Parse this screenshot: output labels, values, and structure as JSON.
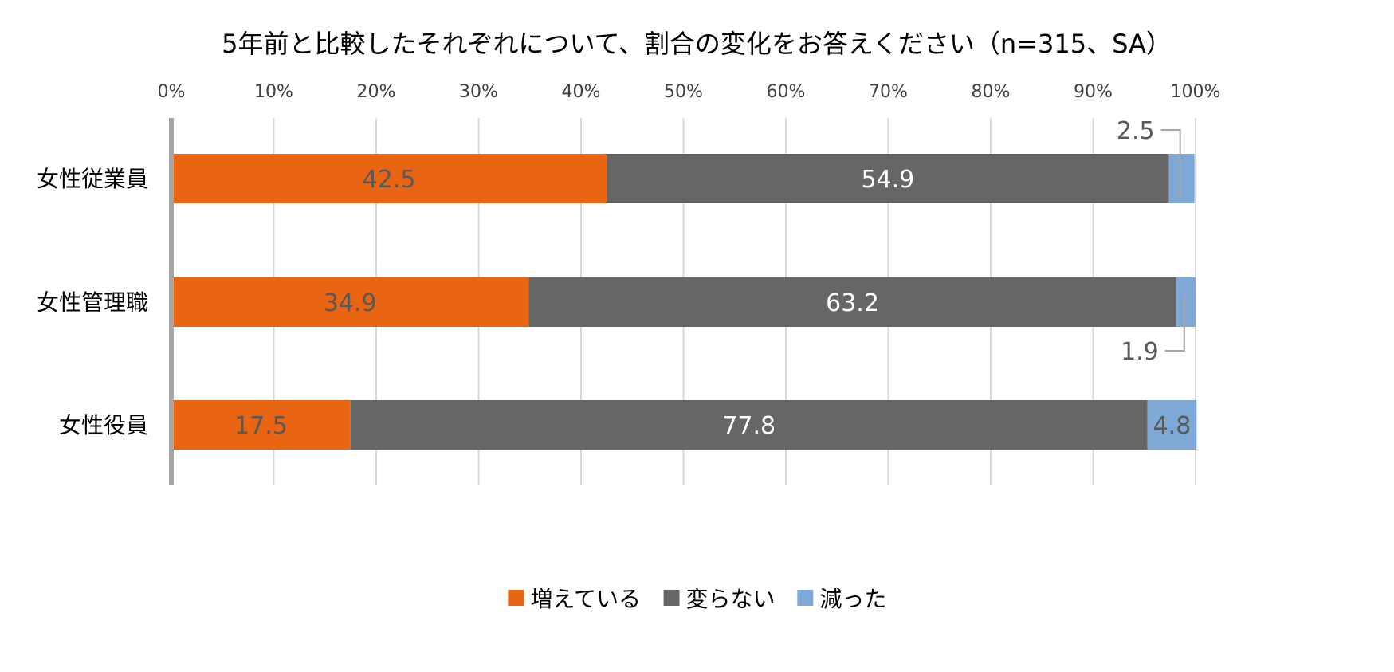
{
  "chart_data": {
    "type": "bar",
    "orientation": "horizontal",
    "stacked": true,
    "title": "5年前と比較したそれぞれについて、割合の変化をお答えください（n=315、SA）",
    "categories": [
      "女性従業員",
      "女性管理職",
      "女性役員"
    ],
    "series": [
      {
        "name": "増えている",
        "values": [
          42.5,
          34.9,
          17.5
        ],
        "labels": [
          "42.5",
          "34.9",
          "17.5"
        ],
        "color": "#E96513",
        "label_color": "#595959"
      },
      {
        "name": "変らない",
        "values": [
          54.9,
          63.2,
          77.8
        ],
        "labels": [
          "54.9",
          "63.2",
          "77.8"
        ],
        "color": "#666666",
        "label_color": "#FFFFFF"
      },
      {
        "name": "減った",
        "values": [
          2.5,
          1.9,
          4.8
        ],
        "labels": [
          "2.5",
          "1.9",
          "4.8"
        ],
        "color": "#7EA9D6",
        "label_color": "#595959"
      }
    ],
    "x_ticks": [
      "0%",
      "10%",
      "20%",
      "30%",
      "40%",
      "50%",
      "60%",
      "70%",
      "80%",
      "90%",
      "100%"
    ],
    "xlim": [
      0,
      100
    ],
    "grid": true,
    "legend_position": "bottom"
  }
}
